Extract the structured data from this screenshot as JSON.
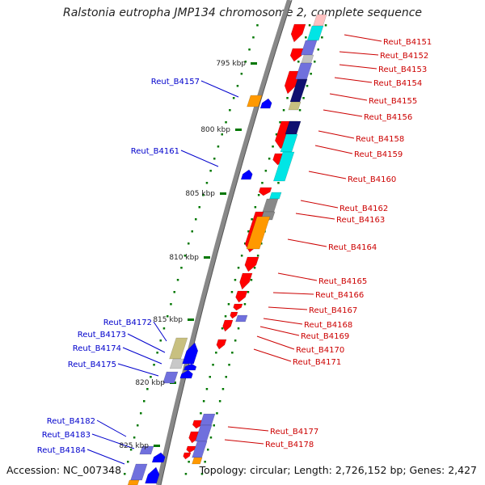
{
  "title": "Ralstonia eutropha JMP134 chromosome 2, complete sequence",
  "footer": {
    "accession": "Accession: NC_007348",
    "topology": "Topology: circular; Length: 2,726,152 bp; Genes: 2,427"
  },
  "colors": {
    "forward_label": "#cc0000",
    "reverse_label": "#0000cc",
    "tick": "#007700",
    "backbone": "#888888",
    "gene_red": "#ff0000",
    "gene_blue": "#0000ff",
    "gene_cyan": "#00e5e5",
    "gene_navy": "#101070",
    "gene_purple": "#7070dd",
    "gene_orange": "#ff9900",
    "gene_khaki": "#c8c080",
    "gene_gray": "#888888",
    "gene_pink": "#ffc0c0"
  },
  "scale_labels": [
    "795 kbp",
    "800 kbp",
    "805 kbp",
    "810 kbp",
    "815 kbp",
    "820 kbp",
    "825 kbp"
  ],
  "forward_labels": [
    "Reut_B4151",
    "Reut_B4152",
    "Reut_B4153",
    "Reut_B4154",
    "Reut_B4155",
    "Reut_B4156",
    "Reut_B4158",
    "Reut_B4159",
    "Reut_B4160",
    "Reut_B4162",
    "Reut_B4163",
    "Reut_B4164",
    "Reut_B4165",
    "Reut_B4166",
    "Reut_B4167",
    "Reut_B4168",
    "Reut_B4169",
    "Reut_B4170",
    "Reut_B4171",
    "Reut_B4177",
    "Reut_B4178"
  ],
  "reverse_labels": [
    "Reut_B4157",
    "Reut_B4161",
    "Reut_B4172",
    "Reut_B4173",
    "Reut_B4174",
    "Reut_B4175",
    "Reut_B4182",
    "Reut_B4183",
    "Reut_B4184"
  ]
}
